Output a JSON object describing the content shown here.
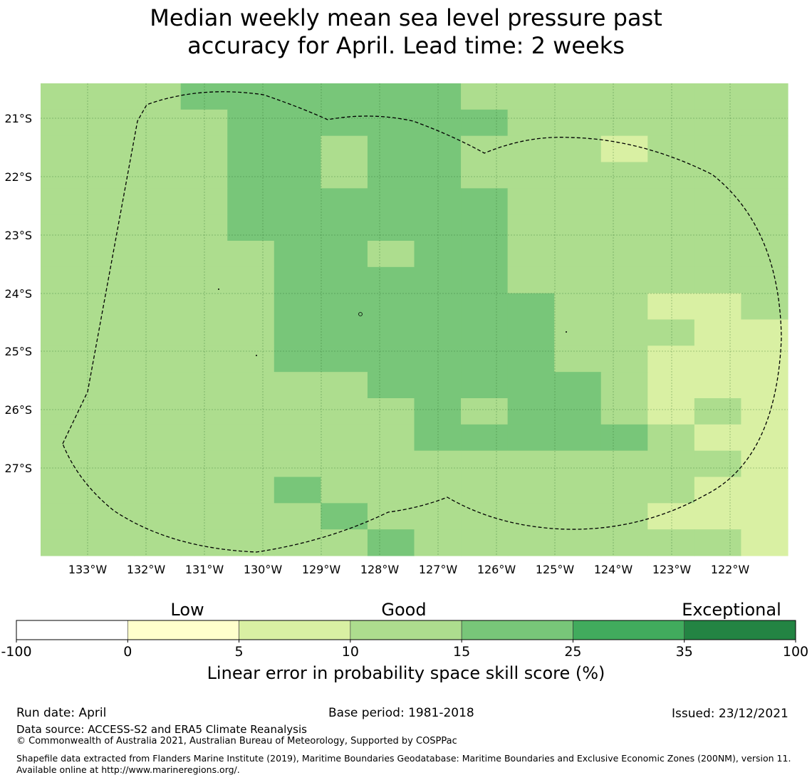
{
  "title_line1": "Median weekly mean sea level pressure past",
  "title_line2": "accuracy for April. Lead time: 2 weeks",
  "map": {
    "lon_labels": [
      "133°W",
      "132°W",
      "131°W",
      "130°W",
      "129°W",
      "128°W",
      "127°W",
      "126°W",
      "125°W",
      "124°W",
      "123°W",
      "122°W"
    ],
    "lat_labels": [
      "21°S",
      "22°S",
      "23°S",
      "24°S",
      "25°S",
      "26°S",
      "27°S"
    ],
    "grid_resolution_deg": 0.55,
    "cell_values_pct_rows_north_to_south": [
      [
        12,
        12,
        12,
        17,
        17,
        17,
        17,
        17,
        17,
        12,
        12,
        12,
        12,
        12,
        12,
        12
      ],
      [
        12,
        12,
        12,
        12,
        17,
        17,
        17,
        17,
        17,
        17,
        12,
        12,
        12,
        12,
        12,
        12
      ],
      [
        12,
        12,
        12,
        12,
        17,
        17,
        12,
        17,
        17,
        12,
        12,
        12,
        8,
        12,
        12,
        12
      ],
      [
        12,
        12,
        12,
        12,
        17,
        17,
        12,
        17,
        17,
        12,
        12,
        12,
        12,
        12,
        12,
        12
      ],
      [
        12,
        12,
        12,
        12,
        17,
        17,
        17,
        17,
        17,
        17,
        12,
        12,
        12,
        12,
        12,
        12
      ],
      [
        12,
        12,
        12,
        12,
        17,
        17,
        17,
        17,
        17,
        17,
        12,
        12,
        12,
        12,
        12,
        12
      ],
      [
        12,
        12,
        12,
        12,
        12,
        17,
        17,
        12,
        17,
        17,
        12,
        12,
        12,
        12,
        12,
        12
      ],
      [
        12,
        12,
        12,
        12,
        12,
        17,
        17,
        17,
        17,
        17,
        12,
        12,
        12,
        12,
        12,
        12
      ],
      [
        12,
        12,
        12,
        12,
        12,
        17,
        17,
        17,
        17,
        17,
        17,
        12,
        12,
        8,
        8,
        12
      ],
      [
        12,
        12,
        12,
        12,
        12,
        17,
        17,
        17,
        17,
        17,
        17,
        12,
        12,
        12,
        8,
        8
      ],
      [
        12,
        12,
        12,
        12,
        12,
        17,
        17,
        17,
        17,
        17,
        17,
        12,
        12,
        8,
        8,
        8
      ],
      [
        12,
        12,
        12,
        12,
        12,
        12,
        12,
        17,
        17,
        17,
        17,
        17,
        12,
        8,
        8,
        8
      ],
      [
        12,
        12,
        12,
        12,
        12,
        12,
        12,
        12,
        17,
        12,
        17,
        17,
        12,
        8,
        12,
        8
      ],
      [
        12,
        12,
        12,
        12,
        12,
        12,
        12,
        12,
        17,
        17,
        17,
        17,
        17,
        12,
        8,
        8
      ],
      [
        12,
        12,
        12,
        12,
        12,
        12,
        12,
        12,
        12,
        12,
        12,
        12,
        12,
        12,
        12,
        8
      ],
      [
        12,
        12,
        12,
        12,
        12,
        17,
        12,
        12,
        12,
        12,
        12,
        12,
        12,
        12,
        8,
        8
      ],
      [
        12,
        12,
        12,
        12,
        12,
        12,
        17,
        12,
        12,
        12,
        12,
        12,
        12,
        8,
        8,
        8
      ],
      [
        12,
        12,
        12,
        12,
        12,
        12,
        12,
        17,
        12,
        12,
        12,
        12,
        12,
        12,
        12,
        8
      ]
    ],
    "boundary_style": "dashed"
  },
  "colorbar": {
    "category_labels": [
      "Low",
      "Good",
      "Exceptional"
    ],
    "tick_labels": [
      "-100",
      "0",
      "5",
      "10",
      "15",
      "25",
      "35",
      "100"
    ],
    "bin_colors": [
      "#ffffff",
      "#ffffcc",
      "#d9f0a3",
      "#addd8e",
      "#78c679",
      "#41ab5d",
      "#238443"
    ],
    "title": "Linear error in probability space skill score (%)"
  },
  "footer": {
    "run_date": "Run date: April",
    "base_period": "Base period: 1981-2018",
    "issued": "Issued: 23/12/2021",
    "data_source": "Data source: ACCESS-S2 and ERA5 Climate Reanalysis",
    "copyright": "© Commonwealth of Australia 2021, Australian Bureau of Meteorology, Supported by COSPPac",
    "shapefile": "Shapefile data extracted from Flanders Marine Institute (2019), Maritime Boundaries Geodatabase: Maritime Boundaries and Exclusive Economic Zones (200NM), version 11. Available online at http://www.marineregions.org/."
  }
}
